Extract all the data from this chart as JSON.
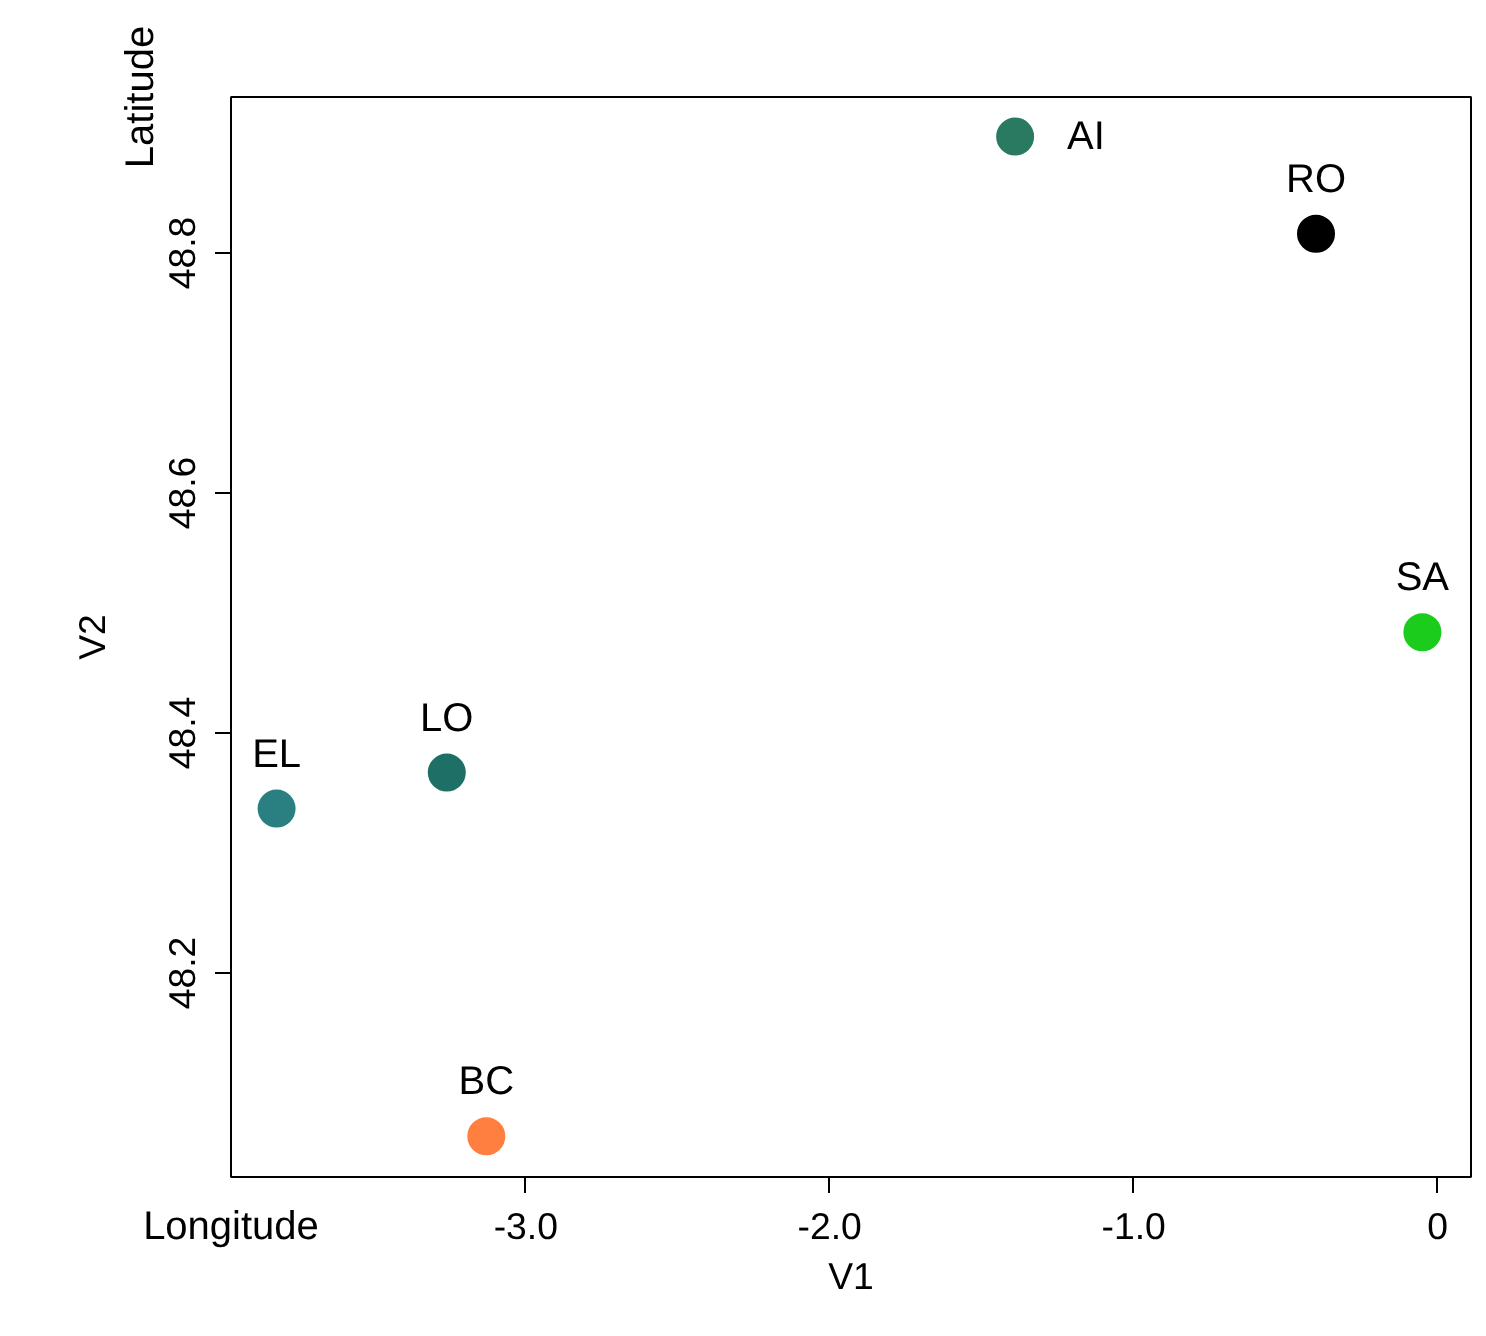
{
  "chart_data": {
    "type": "scatter",
    "xlabel": "V1",
    "ylabel": "V2",
    "x": [
      -1.39,
      -0.4,
      -0.05,
      -3.82,
      -3.26,
      -3.13
    ],
    "series": [
      {
        "values": [
          48.897,
          48.816,
          48.484,
          48.337,
          48.367,
          48.064
        ],
        "colors": [
          "#2a7a62",
          "#000000",
          "#1ccc1c",
          "#2a8080",
          "#1e7066",
          "#ff7f40"
        ]
      }
    ],
    "annotations": [
      {
        "text": "AI",
        "x": -1.39,
        "y": 48.897
      },
      {
        "text": "RO",
        "x": -0.4,
        "y": 48.816
      },
      {
        "text": "SA",
        "x": -0.05,
        "y": 48.484
      },
      {
        "text": "EL",
        "x": -3.82,
        "y": 48.337
      },
      {
        "text": "LO",
        "x": -3.26,
        "y": 48.367
      },
      {
        "text": "BC",
        "x": -3.13,
        "y": 48.064
      },
      "Latitude",
      "Longitude"
    ],
    "xlim": [
      -3.97,
      0.11
    ],
    "ylim": [
      48.03,
      48.93
    ],
    "xticks": [
      {
        "value": -3,
        "label": "-3.0"
      },
      {
        "value": -2,
        "label": "-2.0"
      },
      {
        "value": -1,
        "label": "-1.0"
      },
      0
    ],
    "yticks": [
      48.2,
      48.4,
      48.6,
      48.8
    ],
    "marker": "circle",
    "grid": false
  }
}
